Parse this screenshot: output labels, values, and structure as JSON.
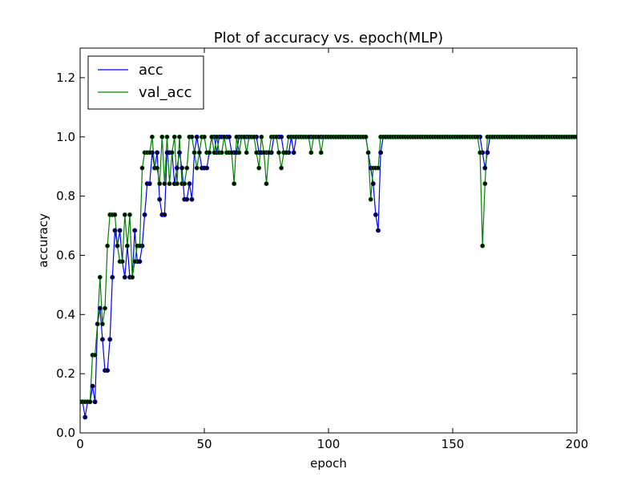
{
  "chart_data": {
    "type": "line",
    "title": "Plot of accuracy vs. epoch(MLP)",
    "xlabel": "epoch",
    "ylabel": "accuracy",
    "xlim": [
      0,
      200
    ],
    "ylim": [
      0.0,
      1.3
    ],
    "xticks": [
      "0",
      "50",
      "100",
      "150",
      "200"
    ],
    "yticks": [
      "0.0",
      "0.2",
      "0.4",
      "0.6",
      "0.8",
      "1.0",
      "1.2"
    ],
    "grid": false,
    "legend_position": "top-left",
    "marker": "circle",
    "marker_color": "#000000",
    "series": [
      {
        "name": "acc",
        "color": "#0000ff",
        "values": [
          0.105,
          0.105,
          0.053,
          0.105,
          0.105,
          0.158,
          0.105,
          0.368,
          0.421,
          0.316,
          0.211,
          0.211,
          0.316,
          0.526,
          0.684,
          0.632,
          0.684,
          0.579,
          0.526,
          0.632,
          0.526,
          0.526,
          0.684,
          0.579,
          0.579,
          0.632,
          0.737,
          0.842,
          0.842,
          0.947,
          0.895,
          0.947,
          0.789,
          0.737,
          0.737,
          0.947,
          0.947,
          0.947,
          0.842,
          0.895,
          0.947,
          0.895,
          0.789,
          0.789,
          0.842,
          0.789,
          0.947,
          1.0,
          0.947,
          0.895,
          0.895,
          0.895,
          0.947,
          1.0,
          1.0,
          0.947,
          1.0,
          1.0,
          1.0,
          1.0,
          1.0,
          0.947,
          0.947,
          0.947,
          1.0,
          1.0,
          1.0,
          1.0,
          1.0,
          1.0,
          1.0,
          1.0,
          0.947,
          0.947,
          0.947,
          0.947,
          0.947,
          0.947,
          1.0,
          1.0,
          1.0,
          1.0,
          0.947,
          0.947,
          0.947,
          1.0,
          0.947,
          1.0,
          1.0,
          1.0,
          1.0,
          1.0,
          1.0,
          1.0,
          1.0,
          1.0,
          1.0,
          1.0,
          1.0,
          1.0,
          1.0,
          1.0,
          1.0,
          1.0,
          1.0,
          1.0,
          1.0,
          1.0,
          1.0,
          1.0,
          1.0,
          1.0,
          1.0,
          1.0,
          1.0,
          1.0,
          0.947,
          0.895,
          0.842,
          0.737,
          0.684,
          0.947,
          1.0,
          1.0,
          1.0,
          1.0,
          1.0,
          1.0,
          1.0,
          1.0,
          1.0,
          1.0,
          1.0,
          1.0,
          1.0,
          1.0,
          1.0,
          1.0,
          1.0,
          1.0,
          1.0,
          1.0,
          1.0,
          1.0,
          1.0,
          1.0,
          1.0,
          1.0,
          1.0,
          1.0,
          1.0,
          1.0,
          1.0,
          1.0,
          1.0,
          1.0,
          1.0,
          1.0,
          1.0,
          1.0,
          1.0,
          1.0,
          0.947,
          0.895,
          0.947,
          1.0,
          1.0,
          1.0,
          1.0,
          1.0,
          1.0,
          1.0,
          1.0,
          1.0,
          1.0,
          1.0,
          1.0,
          1.0,
          1.0,
          1.0,
          1.0,
          1.0,
          1.0,
          1.0,
          1.0,
          1.0,
          1.0,
          1.0,
          1.0,
          1.0,
          1.0,
          1.0,
          1.0,
          1.0,
          1.0,
          1.0,
          1.0,
          1.0,
          1.0,
          1.0,
          1.0,
          1.0,
          1.0,
          1.0,
          1.0,
          1.0,
          1.0,
          1.0
        ]
      },
      {
        "name": "val_acc",
        "color": "#008000",
        "values": [
          0.105,
          0.105,
          0.105,
          0.105,
          0.105,
          0.263,
          0.263,
          0.368,
          0.526,
          0.368,
          0.421,
          0.632,
          0.737,
          0.737,
          0.737,
          0.632,
          0.579,
          0.579,
          0.737,
          0.632,
          0.737,
          0.526,
          0.579,
          0.632,
          0.632,
          0.895,
          0.947,
          0.947,
          0.947,
          1.0,
          0.895,
          0.895,
          0.842,
          1.0,
          0.842,
          1.0,
          0.842,
          0.947,
          1.0,
          0.842,
          1.0,
          0.842,
          0.842,
          0.895,
          1.0,
          1.0,
          0.947,
          0.895,
          0.947,
          1.0,
          1.0,
          0.947,
          0.947,
          1.0,
          0.947,
          1.0,
          0.947,
          0.947,
          1.0,
          0.947,
          0.947,
          0.947,
          0.842,
          1.0,
          0.947,
          1.0,
          1.0,
          0.947,
          1.0,
          1.0,
          1.0,
          0.947,
          0.895,
          1.0,
          0.947,
          0.842,
          0.947,
          1.0,
          1.0,
          1.0,
          0.947,
          0.895,
          0.947,
          0.947,
          1.0,
          1.0,
          1.0,
          1.0,
          1.0,
          1.0,
          1.0,
          1.0,
          1.0,
          0.947,
          1.0,
          1.0,
          1.0,
          0.947,
          1.0,
          1.0,
          1.0,
          1.0,
          1.0,
          1.0,
          1.0,
          1.0,
          1.0,
          1.0,
          1.0,
          1.0,
          1.0,
          1.0,
          1.0,
          1.0,
          1.0,
          1.0,
          0.947,
          0.789,
          0.895,
          0.895,
          0.895,
          1.0,
          1.0,
          1.0,
          1.0,
          1.0,
          1.0,
          1.0,
          1.0,
          1.0,
          1.0,
          1.0,
          1.0,
          1.0,
          1.0,
          1.0,
          1.0,
          1.0,
          1.0,
          1.0,
          1.0,
          1.0,
          1.0,
          1.0,
          1.0,
          1.0,
          1.0,
          1.0,
          1.0,
          1.0,
          1.0,
          1.0,
          1.0,
          1.0,
          1.0,
          1.0,
          1.0,
          1.0,
          1.0,
          1.0,
          1.0,
          0.947,
          0.632,
          0.842,
          1.0,
          1.0,
          1.0,
          1.0,
          1.0,
          1.0,
          1.0,
          1.0,
          1.0,
          1.0,
          1.0,
          1.0,
          1.0,
          1.0,
          1.0,
          1.0,
          1.0,
          1.0,
          1.0,
          1.0,
          1.0,
          1.0,
          1.0,
          1.0,
          1.0,
          1.0,
          1.0,
          1.0,
          1.0,
          1.0,
          1.0,
          1.0,
          1.0,
          1.0,
          1.0,
          1.0,
          1.0,
          1.0,
          1.0,
          1.0,
          1.0,
          1.0,
          1.0
        ]
      }
    ]
  }
}
